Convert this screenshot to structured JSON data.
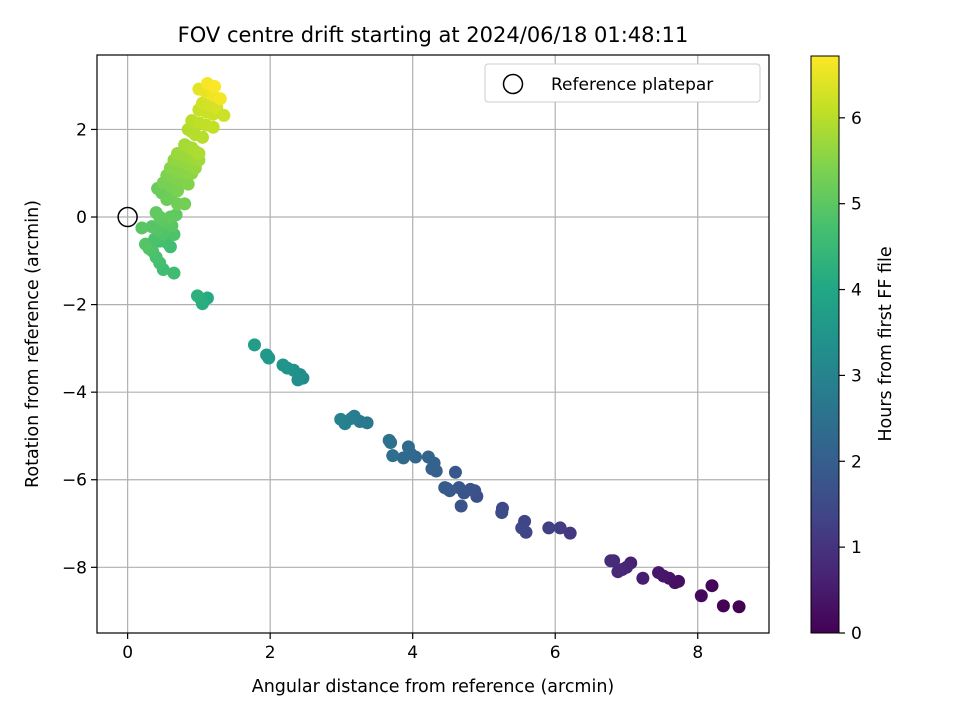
{
  "chart_data": {
    "type": "scatter",
    "title": "FOV centre drift starting at 2024/06/18 01:48:11",
    "xlabel": "Angular distance from reference (arcmin)",
    "ylabel": "Rotation from reference (arcmin)",
    "xlim": [
      -0.43,
      9.0
    ],
    "ylim": [
      -9.5,
      3.7
    ],
    "xticks": [
      0,
      2,
      4,
      6,
      8
    ],
    "yticks": [
      -8,
      -6,
      -4,
      -2,
      0,
      2
    ],
    "grid": true,
    "legend": {
      "placement": "upper-right",
      "entries": [
        "Reference platepar"
      ]
    },
    "reference_point": {
      "x": 0,
      "y": 0
    },
    "colorbar": {
      "label": "Hours from first FF file",
      "colormap": "viridis",
      "range": [
        0,
        6.72
      ],
      "ticks": [
        0,
        1,
        2,
        3,
        4,
        5,
        6
      ]
    },
    "series": [
      {
        "x": [
          8.58,
          8.36,
          8.2,
          8.05,
          7.73,
          7.68,
          7.6,
          7.52,
          7.45,
          7.23,
          7.06,
          7.0,
          6.94,
          6.88,
          6.82,
          6.78,
          6.21,
          6.07,
          5.91,
          5.59,
          5.57,
          5.53,
          5.26,
          5.25,
          4.9,
          4.87,
          4.81,
          4.72,
          4.68,
          4.65,
          4.6,
          4.52,
          4.48,
          4.45,
          4.33,
          4.3,
          4.27,
          4.22,
          4.04,
          3.97,
          3.94,
          3.87,
          3.72,
          3.69,
          3.67,
          3.36,
          3.26,
          3.18,
          3.14,
          3.05,
          2.99,
          2.46,
          2.42,
          2.39,
          2.33,
          2.24,
          2.18,
          1.98,
          1.95,
          1.78,
          1.12,
          1.05,
          1.03,
          0.98,
          0.65,
          0.5,
          0.45,
          0.4,
          0.35,
          0.3,
          0.25,
          0.2,
          0.6,
          0.55,
          0.45,
          0.38,
          0.65,
          0.5,
          0.42,
          0.34,
          0.62,
          0.55,
          0.5,
          0.45,
          0.4,
          0.68,
          0.6,
          0.48,
          0.42,
          0.55,
          0.6,
          0.7,
          0.8,
          0.5,
          0.6,
          0.7,
          0.55,
          0.65,
          0.75,
          0.85,
          0.6,
          0.7,
          0.8,
          0.9,
          0.65,
          0.75,
          0.85,
          0.95,
          0.7,
          0.8,
          0.9,
          1.0,
          0.8,
          0.85,
          0.9,
          0.95,
          1.0,
          0.85,
          0.9,
          0.95,
          1.05,
          0.9,
          1.0,
          1.1,
          1.2,
          1.0,
          1.1,
          1.2,
          1.05,
          1.15,
          1.25,
          1.35,
          1.0,
          1.1,
          1.2,
          1.3,
          1.12,
          1.22
        ],
        "y": [
          -8.9,
          -8.88,
          -8.42,
          -8.65,
          -8.32,
          -8.35,
          -8.25,
          -8.2,
          -8.12,
          -8.25,
          -7.9,
          -8.0,
          -8.05,
          -8.1,
          -7.85,
          -7.85,
          -7.22,
          -7.1,
          -7.1,
          -7.2,
          -6.95,
          -7.1,
          -6.65,
          -6.75,
          -6.38,
          -6.25,
          -6.22,
          -6.3,
          -6.6,
          -6.18,
          -5.83,
          -6.25,
          -6.2,
          -6.18,
          -5.8,
          -5.62,
          -5.75,
          -5.48,
          -5.48,
          -5.4,
          -5.25,
          -5.5,
          -5.45,
          -5.15,
          -5.1,
          -4.7,
          -4.67,
          -4.55,
          -4.6,
          -4.72,
          -4.62,
          -3.68,
          -3.6,
          -3.72,
          -3.5,
          -3.45,
          -3.38,
          -3.22,
          -3.15,
          -2.92,
          -1.85,
          -1.98,
          -1.88,
          -1.8,
          -1.28,
          -1.2,
          -1.05,
          -0.92,
          -0.78,
          -0.72,
          -0.62,
          -0.25,
          -0.68,
          -0.58,
          -0.55,
          -0.5,
          -0.4,
          -0.38,
          -0.3,
          -0.22,
          -0.2,
          -0.12,
          -0.08,
          0.0,
          0.1,
          0.05,
          0.0,
          0.55,
          0.65,
          0.4,
          0.45,
          0.3,
          0.3,
          0.78,
          0.7,
          0.6,
          0.95,
          0.9,
          0.85,
          0.75,
          1.12,
          1.05,
          1.0,
          1.0,
          1.3,
          1.25,
          1.2,
          1.12,
          1.45,
          1.4,
          1.35,
          1.3,
          1.65,
          1.6,
          1.58,
          1.5,
          1.45,
          2.0,
          1.95,
          1.88,
          1.82,
          2.2,
          2.15,
          2.1,
          2.05,
          2.45,
          2.4,
          2.35,
          2.6,
          2.55,
          2.5,
          2.32,
          2.92,
          2.85,
          2.78,
          2.7,
          3.05,
          2.98
        ],
        "t": [
          0.0,
          0.05,
          0.1,
          0.15,
          0.25,
          0.3,
          0.35,
          0.4,
          0.45,
          0.55,
          0.62,
          0.67,
          0.72,
          0.77,
          0.82,
          0.87,
          1.1,
          1.18,
          1.25,
          1.35,
          1.38,
          1.42,
          1.5,
          1.53,
          1.62,
          1.65,
          1.68,
          1.72,
          1.75,
          1.78,
          1.82,
          1.86,
          1.9,
          1.93,
          2.02,
          2.06,
          2.1,
          2.14,
          2.22,
          2.26,
          2.3,
          2.34,
          2.42,
          2.46,
          2.5,
          2.7,
          2.75,
          2.8,
          2.85,
          2.9,
          2.95,
          3.2,
          3.25,
          3.3,
          3.35,
          3.4,
          3.45,
          3.55,
          3.6,
          3.7,
          4.1,
          4.15,
          4.2,
          4.25,
          4.6,
          4.65,
          4.7,
          4.75,
          4.8,
          4.85,
          4.9,
          4.95,
          4.62,
          4.68,
          4.72,
          4.78,
          4.82,
          4.86,
          4.9,
          4.94,
          4.97,
          5.0,
          5.02,
          5.04,
          5.06,
          5.05,
          5.08,
          5.15,
          5.17,
          5.2,
          5.22,
          5.25,
          5.28,
          5.32,
          5.34,
          5.36,
          5.4,
          5.42,
          5.44,
          5.46,
          5.5,
          5.52,
          5.54,
          5.56,
          5.6,
          5.62,
          5.64,
          5.66,
          5.7,
          5.72,
          5.74,
          5.76,
          5.8,
          5.82,
          5.84,
          5.86,
          5.88,
          5.92,
          5.94,
          5.96,
          5.98,
          6.02,
          6.05,
          6.08,
          6.1,
          6.15,
          6.18,
          6.2,
          6.25,
          6.28,
          6.3,
          6.22,
          6.45,
          6.5,
          6.55,
          6.6,
          6.65,
          6.7
        ]
      }
    ]
  },
  "colors": {
    "marker_edge": "#000000",
    "grid": "#b0b0b0",
    "axis": "#000000"
  }
}
